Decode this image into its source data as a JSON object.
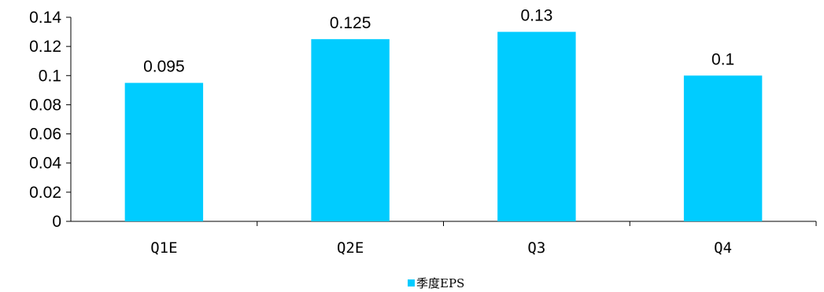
{
  "chart_data": {
    "type": "bar",
    "title": "",
    "xlabel": "",
    "ylabel": "",
    "categories": [
      "Q1E",
      "Q2E",
      "Q3",
      "Q4"
    ],
    "series": [
      {
        "name": "季度EPS",
        "values": [
          0.095,
          0.125,
          0.13,
          0.1
        ],
        "value_labels": [
          "0.095",
          "0.125",
          "0.13",
          "0.1"
        ],
        "color": "#00CCFF"
      }
    ],
    "ylim": [
      0,
      0.14
    ],
    "yticks": [
      0,
      0.02,
      0.04,
      0.06,
      0.08,
      0.1,
      0.12,
      0.14
    ],
    "ytick_labels": [
      "0",
      "0.02",
      "0.04",
      "0.06",
      "0.08",
      "0.1",
      "0.12",
      "0.14"
    ],
    "grid": false,
    "legend_position": "bottom-center"
  }
}
